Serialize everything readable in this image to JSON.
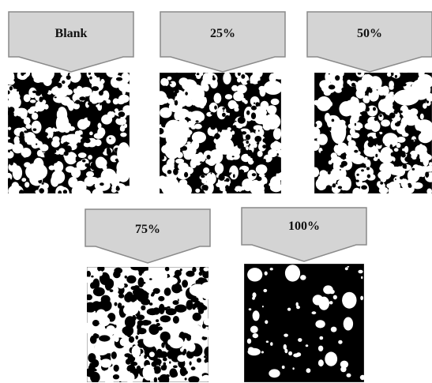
{
  "panels": [
    {
      "label": "Blank",
      "pattern": "dense-mix"
    },
    {
      "label": "25%",
      "pattern": "dense-mix"
    },
    {
      "label": "50%",
      "pattern": "dense-mix"
    },
    {
      "label": "75%",
      "pattern": "mostly-white"
    },
    {
      "label": "100%",
      "pattern": "black-with-white-spots"
    }
  ],
  "colors": {
    "arrow_fill": "#d4d4d4",
    "arrow_stroke": "#8a8a8a",
    "pore": "#ffffff",
    "solid": "#000000"
  }
}
